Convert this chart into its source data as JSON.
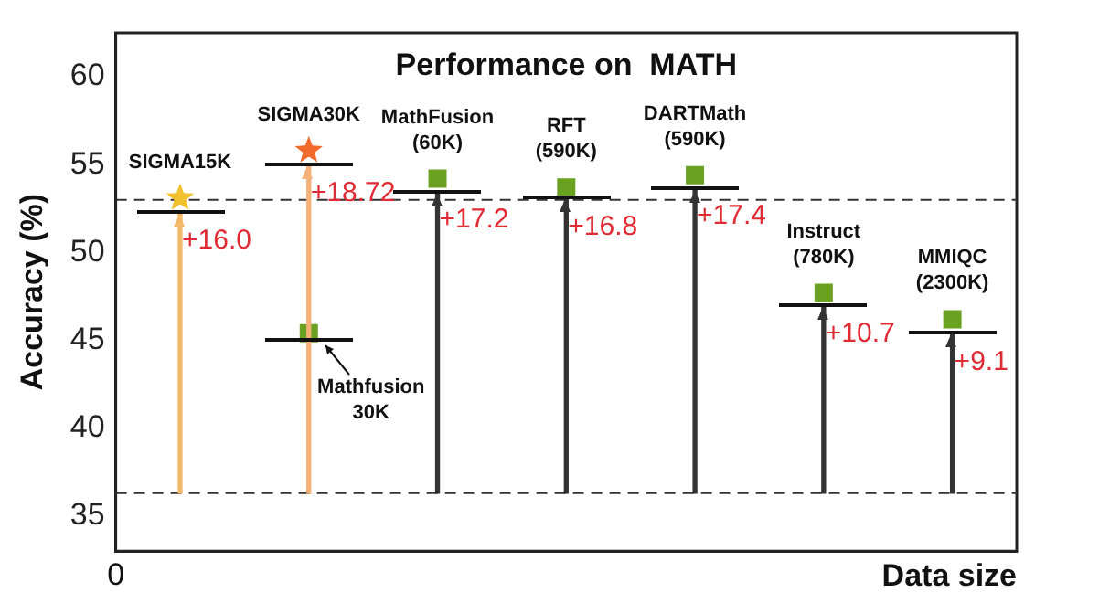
{
  "chart_data": {
    "type": "bar",
    "title": "Performance on  MATH",
    "xlabel": "Data size",
    "ylabel": "Accuracy (%)",
    "categories": [
      "SIGMA15K",
      "SIGMA30K",
      "MathFusion (60K)",
      "RFT (590K)",
      "DARTMath (590K)",
      "Instruct (780K)",
      "MMIQC (2300K)"
    ],
    "series": [
      {
        "colors": [
          "#f3b96a",
          "#f3b077",
          "#333333",
          "#333333",
          "#333333",
          "#333333",
          "#333333"
        ],
        "base": [
          36.3,
          36.3,
          36.3,
          36.3,
          36.3,
          36.3,
          36.3
        ],
        "values": [
          16.0,
          18.72,
          17.2,
          16.8,
          17.4,
          10.7,
          9.1
        ],
        "value_labels": [
          "+16.0",
          "+18.72",
          "+17.2",
          "+16.8",
          "+17.4",
          "+10.7",
          "+9.1"
        ]
      },
      {
        "type": "scatter",
        "marker": "star",
        "x": [
          "SIGMA15K",
          "SIGMA30K"
        ],
        "values": [
          53.1,
          55.8
        ],
        "colors": [
          "#f2c12e",
          "#f26b2a"
        ]
      },
      {
        "type": "scatter",
        "marker": "square",
        "x": [
          "SIGMA30K",
          "MathFusion (60K)",
          "RFT (590K)",
          "DARTMath (590K)",
          "Instruct (780K)",
          "MMIQC (2300K)"
        ],
        "values": [
          45.4,
          54.2,
          53.7,
          54.4,
          47.7,
          46.2
        ],
        "color": "#6aa121"
      }
    ],
    "ylim": [
      33,
      62.5
    ],
    "yticks": [
      35,
      40,
      45,
      50,
      55,
      60
    ],
    "grid": false,
    "legend": false,
    "tick_labels": "y",
    "ref_lines": [
      {
        "axis": "y",
        "value": 53.0,
        "line_style": "dashed",
        "color": "#333333"
      },
      {
        "axis": "y",
        "value": 36.3,
        "line_style": "dashed",
        "color": "#333333"
      }
    ],
    "annotations": [
      "0",
      {
        "text": "Mathfusion 30K",
        "x": "SIGMA30K",
        "y": 45.0
      }
    ]
  }
}
